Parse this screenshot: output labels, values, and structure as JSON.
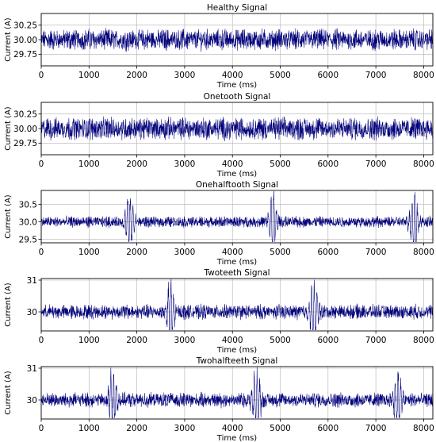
{
  "chart_data": [
    {
      "type": "line",
      "title": "Healthy Signal",
      "xlabel": "Time (ms)",
      "ylabel": "Current (A)",
      "xlim": [
        0,
        8192
      ],
      "ylim": [
        29.55,
        30.45
      ],
      "xticks": [
        0,
        1000,
        2000,
        3000,
        4000,
        5000,
        6000,
        7000,
        8000
      ],
      "yticks": [
        29.75,
        30.0,
        30.25
      ],
      "ytick_labels": [
        "29.75",
        "30.00",
        "30.25"
      ],
      "grid": true,
      "series": [
        {
          "color": "#00007a",
          "baseline": 30.0,
          "amplitude": 0.16,
          "bursts": []
        }
      ]
    },
    {
      "type": "line",
      "title": "Onetooth Signal",
      "xlabel": "Time (ms)",
      "ylabel": "Current (A)",
      "xlim": [
        0,
        8192
      ],
      "ylim": [
        29.55,
        30.45
      ],
      "xticks": [
        0,
        1000,
        2000,
        3000,
        4000,
        5000,
        6000,
        7000,
        8000
      ],
      "yticks": [
        29.75,
        30.0,
        30.25
      ],
      "ytick_labels": [
        "29.75",
        "30.00",
        "30.25"
      ],
      "grid": true,
      "series": [
        {
          "color": "#00007a",
          "baseline": 30.0,
          "amplitude": 0.17,
          "bursts": []
        }
      ]
    },
    {
      "type": "line",
      "title": "Onehalftooth Signal",
      "xlabel": "Time (ms)",
      "ylabel": "Current (A)",
      "xlim": [
        0,
        8192
      ],
      "ylim": [
        29.4,
        30.9
      ],
      "xticks": [
        0,
        1000,
        2000,
        3000,
        4000,
        5000,
        6000,
        7000,
        8000
      ],
      "yticks": [
        29.5,
        30.0,
        30.5
      ],
      "ytick_labels": [
        "29.5",
        "30.0",
        "30.5"
      ],
      "grid": true,
      "series": [
        {
          "color": "#00007a",
          "baseline": 30.0,
          "amplitude": 0.14,
          "bursts": [
            1850,
            4850,
            7800
          ]
        }
      ]
    },
    {
      "type": "line",
      "title": "Twoteeth Signal",
      "xlabel": "Time (ms)",
      "ylabel": "Current (A)",
      "xlim": [
        0,
        8192
      ],
      "ylim": [
        29.4,
        31.05
      ],
      "xticks": [
        0,
        1000,
        2000,
        3000,
        4000,
        5000,
        6000,
        7000,
        8000
      ],
      "yticks": [
        30,
        31
      ],
      "ytick_labels": [
        "30",
        "31"
      ],
      "grid": true,
      "series": [
        {
          "color": "#00007a",
          "baseline": 30.0,
          "amplitude": 0.2,
          "bursts": [
            2700,
            5700
          ]
        }
      ]
    },
    {
      "type": "line",
      "title": "Twohalfteeth Signal",
      "xlabel": "Time (ms)",
      "ylabel": "Current (A)",
      "xlim": [
        0,
        8192
      ],
      "ylim": [
        29.4,
        31.05
      ],
      "xticks": [
        0,
        1000,
        2000,
        3000,
        4000,
        5000,
        6000,
        7000,
        8000
      ],
      "yticks": [
        30,
        31
      ],
      "ytick_labels": [
        "30",
        "31"
      ],
      "grid": true,
      "series": [
        {
          "color": "#00007a",
          "baseline": 30.0,
          "amplitude": 0.2,
          "bursts": [
            1500,
            4500,
            7450
          ]
        }
      ]
    }
  ]
}
